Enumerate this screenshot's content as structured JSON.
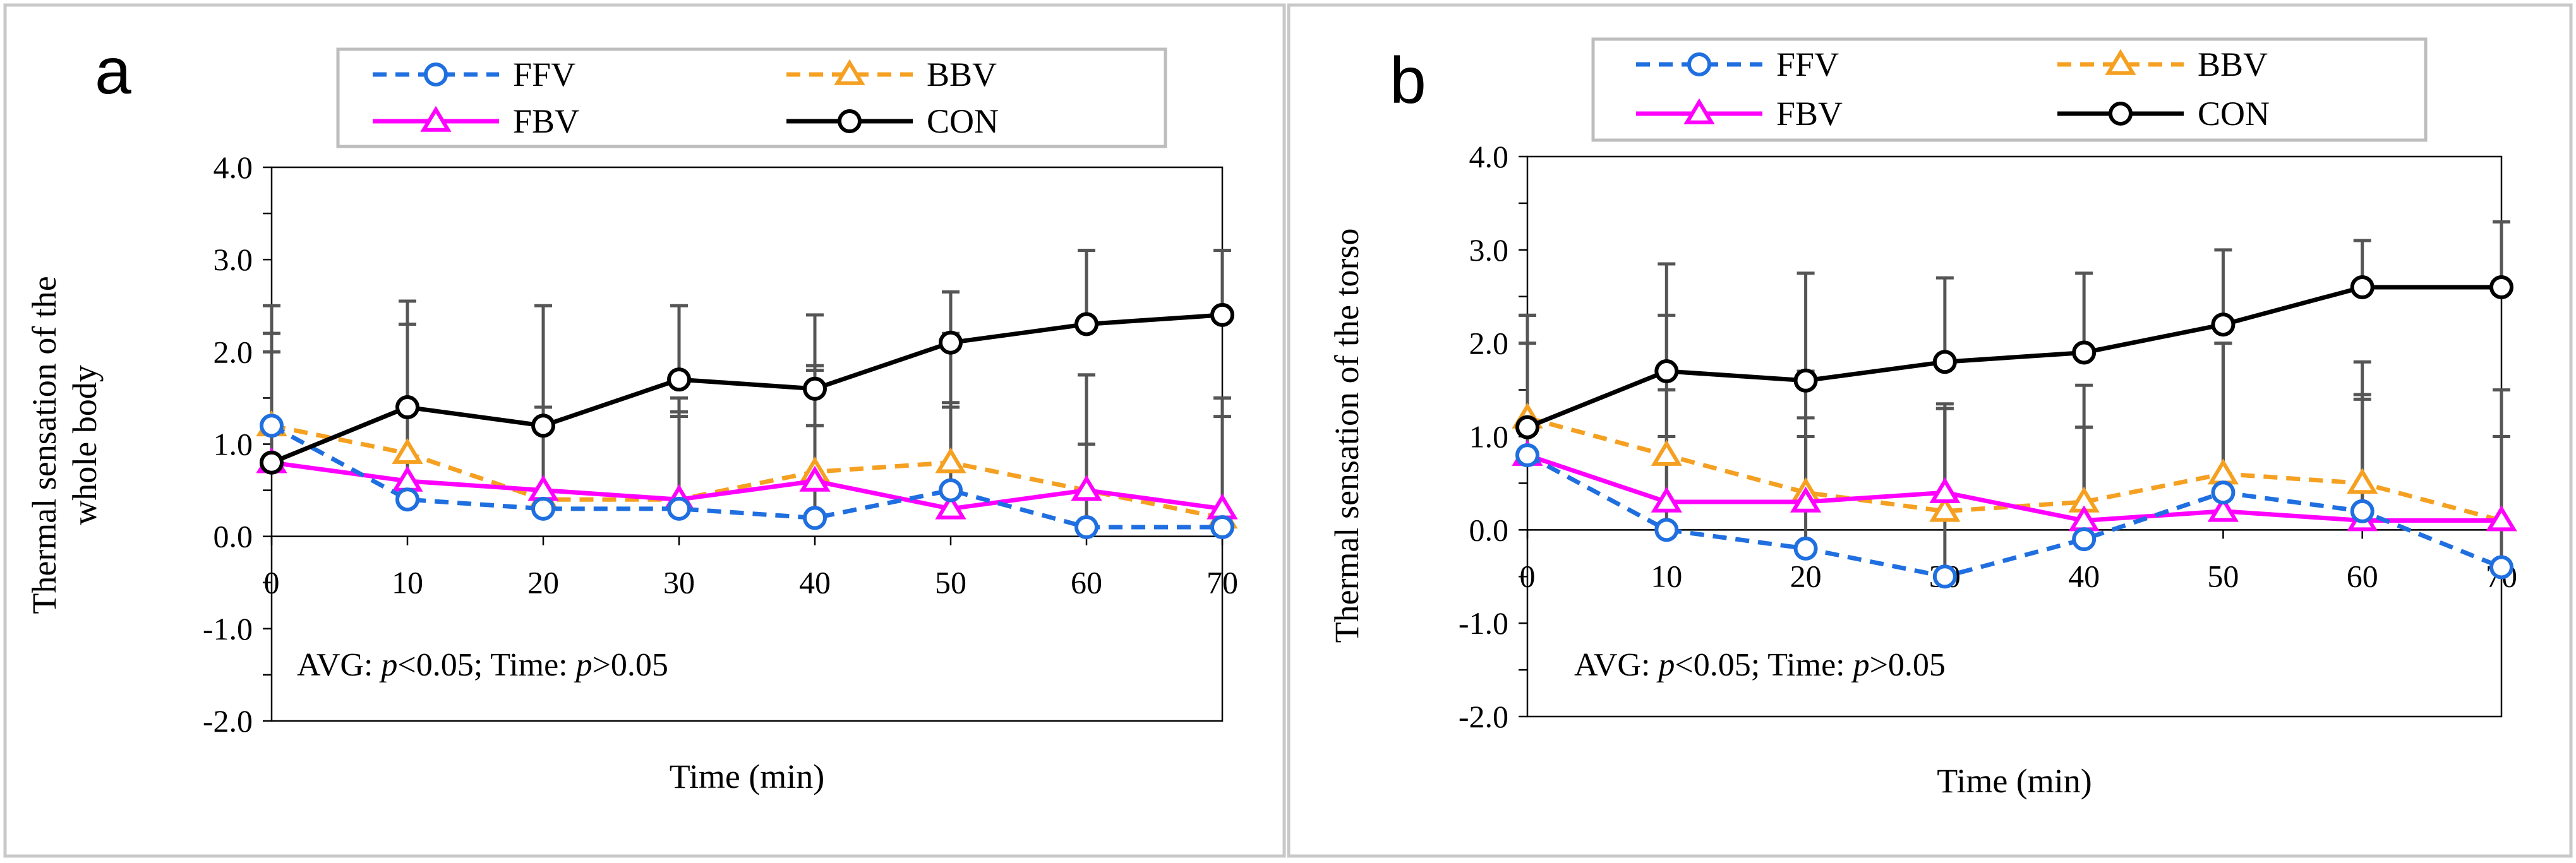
{
  "colors": {
    "FFV": "#1f6fe0",
    "BBV": "#f5a020",
    "FBV": "#ff00ff",
    "CON": "#000000",
    "errorbar": "#555555",
    "panel_border": "#c8c8c8",
    "legend_border": "#bdbdbd"
  },
  "chart_data": [
    {
      "type": "line",
      "panel_label": "a",
      "title": "",
      "xlabel": "Time (min)",
      "ylabel_lines": [
        "Thermal sensation of the",
        "whole body"
      ],
      "annotation": {
        "prefix": "AVG: ",
        "p1": "p",
        "mid": "<0.05; Time: ",
        "p2": "p",
        "suffix": ">0.05"
      },
      "x": [
        0,
        10,
        20,
        30,
        40,
        50,
        60,
        70
      ],
      "x_tick_labels": [
        "0",
        "10",
        "20",
        "30",
        "40",
        "50",
        "60",
        "70"
      ],
      "xlim": [
        0,
        70
      ],
      "ylim": [
        -2,
        4
      ],
      "y_ticks": [
        4.0,
        3.0,
        2.0,
        1.0,
        0.0,
        -1.0,
        -2.0
      ],
      "y_tick_labels": [
        "4.0",
        "3.0",
        "2.0",
        "1.0",
        "0.0",
        "-1.0",
        "-2.0"
      ],
      "grid": false,
      "legend_position": "top",
      "series": [
        {
          "name": "FFV",
          "marker": "circle",
          "dash": true,
          "values": [
            1.2,
            0.4,
            0.3,
            0.3,
            0.2,
            0.5,
            0.1,
            0.1
          ],
          "error": [
            1.0,
            1.0,
            1.1,
            1.0,
            1.0,
            0.9,
            0.9,
            1.2
          ]
        },
        {
          "name": "BBV",
          "marker": "triangle",
          "dash": true,
          "values": [
            1.2,
            0.9,
            0.4,
            0.4,
            0.7,
            0.8,
            0.5,
            0.2
          ],
          "error": [
            1.3,
            1.4,
            1.0,
            1.1,
            1.1,
            1.4,
            1.25,
            1.3
          ]
        },
        {
          "name": "FBV",
          "marker": "triangle",
          "dash": false,
          "values": [
            0.8,
            0.6,
            0.5,
            0.4,
            0.6,
            0.3,
            0.5,
            0.3
          ],
          "error": [
            1.4,
            1.7,
            0.9,
            0.95,
            1.25,
            1.15,
            1.25,
            1.2
          ]
        },
        {
          "name": "CON",
          "marker": "circle",
          "dash": false,
          "values": [
            0.8,
            1.4,
            1.2,
            1.7,
            1.6,
            2.1,
            2.3,
            2.4
          ],
          "error": [
            1.2,
            1.15,
            1.3,
            0.8,
            0.8,
            0.55,
            0.8,
            0.7
          ]
        }
      ]
    },
    {
      "type": "line",
      "panel_label": "b",
      "title": "",
      "xlabel": "Time (min)",
      "ylabel_lines": [
        "Thermal sensation of the torso"
      ],
      "annotation": {
        "prefix": "AVG: ",
        "p1": "p",
        "mid": "<0.05; Time: ",
        "p2": "p",
        "suffix": ">0.05"
      },
      "x": [
        0,
        10,
        20,
        30,
        40,
        50,
        60,
        70
      ],
      "x_tick_labels": [
        "0",
        "10",
        "20",
        "30",
        "40",
        "50",
        "60",
        "70"
      ],
      "xlim": [
        0,
        70
      ],
      "ylim": [
        -2,
        4
      ],
      "y_ticks": [
        4.0,
        3.0,
        2.0,
        1.0,
        0.0,
        -1.0,
        -2.0
      ],
      "y_tick_labels": [
        "4.0",
        "3.0",
        "2.0",
        "1.0",
        "0.0",
        "-1.0",
        "-2.0"
      ],
      "grid": false,
      "legend_position": "top",
      "series": [
        {
          "name": "FFV",
          "marker": "circle",
          "dash": true,
          "values": [
            0.8,
            0.0,
            -0.2,
            -0.5,
            -0.1,
            0.4,
            0.2,
            -0.4
          ],
          "error": [
            1.2,
            1.0,
            1.2,
            1.8,
            1.2,
            1.6,
            1.2,
            1.4
          ]
        },
        {
          "name": "BBV",
          "marker": "triangle",
          "dash": true,
          "values": [
            1.2,
            0.8,
            0.4,
            0.2,
            0.3,
            0.6,
            0.5,
            0.1
          ],
          "error": [
            1.1,
            1.5,
            1.3,
            1.1,
            1.25,
            1.4,
            0.95,
            1.4
          ]
        },
        {
          "name": "FBV",
          "marker": "triangle",
          "dash": false,
          "values": [
            0.8,
            0.3,
            0.3,
            0.4,
            0.1,
            0.2,
            0.1,
            0.1
          ],
          "error": [
            1.5,
            1.2,
            0.9,
            0.95,
            1.0,
            1.8,
            1.7,
            0.9
          ]
        },
        {
          "name": "CON",
          "marker": "circle",
          "dash": false,
          "values": [
            1.1,
            1.7,
            1.6,
            1.8,
            1.9,
            2.2,
            2.6,
            2.6
          ],
          "error": [
            0.9,
            1.15,
            1.15,
            0.9,
            0.85,
            0.8,
            0.5,
            0.7
          ]
        }
      ]
    }
  ]
}
